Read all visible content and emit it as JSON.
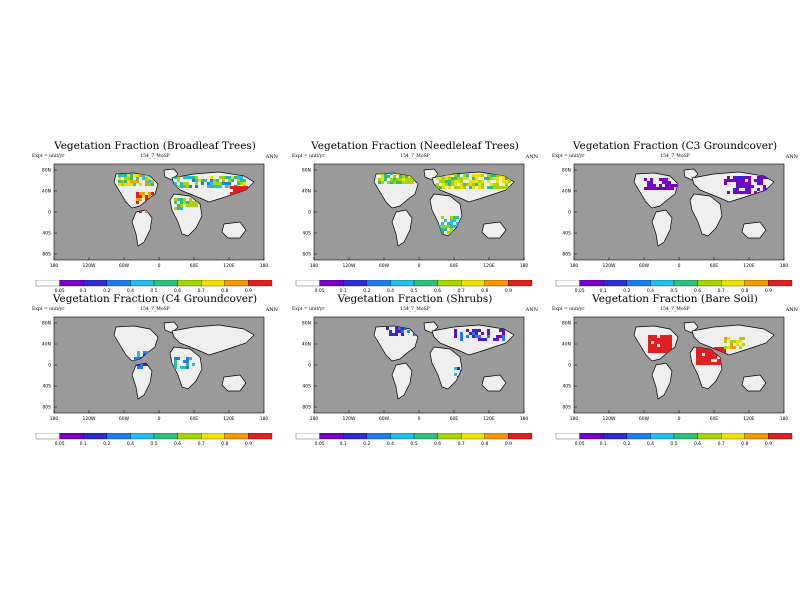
{
  "chart_data": [
    {
      "type": "heatmap",
      "title": "Vegetation Fraction (Broadleaf Trees)",
      "subtitle": "154_7_MoSP",
      "units_label": "Expt = unit/yr",
      "period": "ANN",
      "x_ticks": [
        "180",
        "120W",
        "60W",
        "0",
        "60E",
        "120E",
        "180"
      ],
      "y_ticks": [
        "80N",
        "40N",
        "0",
        "40S",
        "80S"
      ],
      "colorbar_ticks": [
        "0.05",
        "0.1",
        "0.2",
        "0.4",
        "0.5",
        "0.6",
        "0.7",
        "0.8",
        "0.9"
      ],
      "dominant_level": 0.6
    },
    {
      "type": "heatmap",
      "title": "Vegetation Fraction (Needleleaf Trees)",
      "subtitle": "154_7_MoSP",
      "units_label": "Expt = unit/yr",
      "period": "ANN",
      "x_ticks": [
        "180",
        "120W",
        "60W",
        "0",
        "60E",
        "120E",
        "180"
      ],
      "y_ticks": [
        "80N",
        "40N",
        "0",
        "40S",
        "80S"
      ],
      "colorbar_ticks": [
        "0.05",
        "0.1",
        "0.2",
        "0.4",
        "0.5",
        "0.6",
        "0.7",
        "0.8",
        "0.9"
      ],
      "dominant_level": 0.5
    },
    {
      "type": "heatmap",
      "title": "Vegetation Fraction (C3 Groundcover)",
      "subtitle": "154_7_MoSP",
      "units_label": "Expt = unit/yr",
      "period": "ANN",
      "x_ticks": [
        "180",
        "120W",
        "60W",
        "0",
        "60E",
        "120E",
        "180"
      ],
      "y_ticks": [
        "80N",
        "40N",
        "0",
        "40S",
        "80S"
      ],
      "colorbar_ticks": [
        "0.05",
        "0.1",
        "0.2",
        "0.4",
        "0.5",
        "0.6",
        "0.7",
        "0.8",
        "0.9"
      ],
      "dominant_level": 0.1
    },
    {
      "type": "heatmap",
      "title": "Vegetation Fraction (C4 Groundcover)",
      "subtitle": "154_7_MoSP",
      "units_label": "Expt = unit/yr",
      "period": "ANN",
      "x_ticks": [
        "180",
        "120W",
        "60W",
        "0",
        "60E",
        "120E",
        "180"
      ],
      "y_ticks": [
        "80N",
        "40N",
        "0",
        "40S",
        "80S"
      ],
      "colorbar_ticks": [
        "0.05",
        "0.1",
        "0.2",
        "0.4",
        "0.5",
        "0.6",
        "0.7",
        "0.8",
        "0.9"
      ],
      "dominant_level": 0.2
    },
    {
      "type": "heatmap",
      "title": "Vegetation Fraction (Shrubs)",
      "subtitle": "154_7_MoSP",
      "units_label": "Expt = unit/yr",
      "period": "ANN",
      "x_ticks": [
        "180",
        "120W",
        "60W",
        "0",
        "60E",
        "120E",
        "180"
      ],
      "y_ticks": [
        "80N",
        "40N",
        "0",
        "40S",
        "80S"
      ],
      "colorbar_ticks": [
        "0.05",
        "0.1",
        "0.2",
        "0.4",
        "0.5",
        "0.6",
        "0.7",
        "0.8",
        "0.9"
      ],
      "dominant_level": 0.2
    },
    {
      "type": "heatmap",
      "title": "Vegetation Fraction (Bare Soil)",
      "subtitle": "154_7_MoSP",
      "units_label": "Expt = unit/yr",
      "period": "ANN",
      "x_ticks": [
        "180",
        "120W",
        "60W",
        "0",
        "60E",
        "120E",
        "180"
      ],
      "y_ticks": [
        "80N",
        "40N",
        "0",
        "40S",
        "80S"
      ],
      "colorbar_ticks": [
        "0.05",
        "0.1",
        "0.2",
        "0.4",
        "0.5",
        "0.6",
        "0.7",
        "0.8",
        "0.9"
      ],
      "dominant_level": 0.9
    }
  ],
  "colors": {
    "ocean": "#9a9a9a",
    "land": "#efefef",
    "coast": "#000000",
    "scale": [
      "#ffffff",
      "#7a00c8",
      "#2b2bd8",
      "#1f7cf0",
      "#22c0e8",
      "#2ec07a",
      "#a8d400",
      "#f0e000",
      "#f59a00",
      "#e02020"
    ]
  }
}
